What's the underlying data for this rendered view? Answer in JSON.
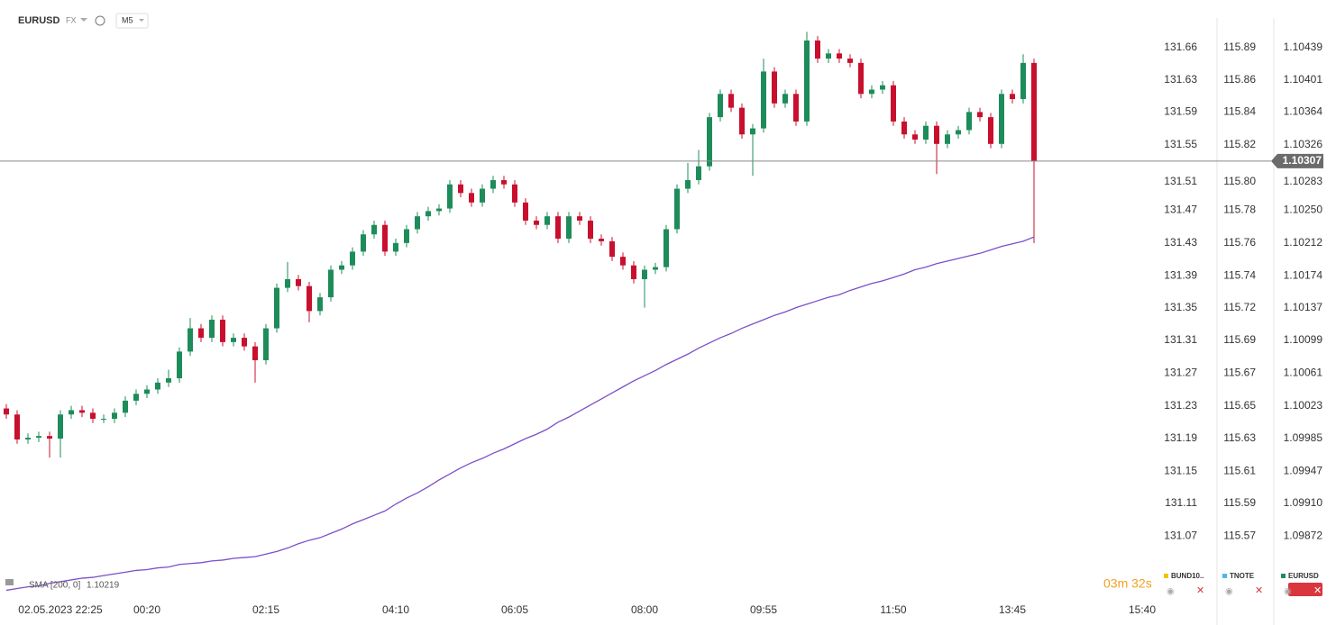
{
  "header": {
    "symbol": "EURUSD",
    "market": "FX",
    "timeframe": "M5"
  },
  "timer": "03m 32s",
  "instruments": [
    {
      "name": "BUND10..",
      "color": "#f2c200"
    },
    {
      "name": "TNOTE",
      "color": "#4db8e8"
    },
    {
      "name": "EURUSD",
      "color": "#1e8c5a"
    }
  ],
  "extra_axes": [
    {
      "labels": [
        "131.66",
        "131.63",
        "131.59",
        "131.55",
        "131.51",
        "131.47",
        "131.43",
        "131.39",
        "131.35",
        "131.31",
        "131.27",
        "131.23",
        "131.19",
        "131.15",
        "131.11",
        "131.07"
      ]
    },
    {
      "labels": [
        "115.89",
        "115.86",
        "115.84",
        "115.82",
        "115.80",
        "115.78",
        "115.76",
        "115.74",
        "115.72",
        "115.69",
        "115.67",
        "115.65",
        "115.63",
        "115.61",
        "115.59",
        "115.57"
      ]
    }
  ],
  "chart_data": {
    "type": "candlestick",
    "up_color": "#1e8c5a",
    "down_color": "#c8102e",
    "categories": [
      null,
      null,
      null,
      null,
      null,
      "02.05.2023 22:25",
      null,
      null,
      null,
      null,
      null,
      null,
      null,
      "00:20",
      null,
      null,
      null,
      null,
      null,
      null,
      null,
      null,
      null,
      null,
      "02:15",
      null,
      null,
      null,
      null,
      null,
      null,
      null,
      null,
      null,
      null,
      null,
      "04:10",
      null,
      null,
      null,
      null,
      null,
      null,
      null,
      null,
      null,
      null,
      "06:05",
      null,
      null,
      null,
      null,
      null,
      null,
      null,
      null,
      null,
      null,
      null,
      "08:00",
      null,
      null,
      null,
      null,
      null,
      null,
      null,
      null,
      null,
      null,
      "09:55",
      null,
      null,
      null,
      null,
      null,
      null,
      null,
      null,
      null,
      null,
      null,
      "11:50",
      null,
      null,
      null,
      null,
      null,
      null,
      null,
      null,
      null,
      null,
      "13:45",
      null,
      null,
      null,
      null,
      null,
      null,
      null,
      null,
      null,
      null,
      null,
      "15:40"
    ],
    "open": [
      1.1002,
      1.10013,
      1.09984,
      1.09986,
      1.09988,
      1.09985,
      1.10013,
      1.10018,
      1.10015,
      1.10008,
      1.10008,
      1.10015,
      1.10029,
      1.10037,
      1.10042,
      1.1005,
      1.10055,
      1.10086,
      1.10113,
      1.10102,
      1.10123,
      1.10097,
      1.10102,
      1.10092,
      1.10076,
      1.10113,
      1.1016,
      1.1017,
      1.10162,
      1.10133,
      1.10149,
      1.10181,
      1.10186,
      1.10202,
      1.10222,
      1.10233,
      1.10202,
      1.10212,
      1.10228,
      1.10243,
      1.10249,
      1.10252,
      1.1028,
      1.1027,
      1.10259,
      1.10275,
      1.10285,
      1.1028,
      1.10259,
      1.10238,
      1.10233,
      1.10243,
      1.10217,
      1.10243,
      1.10238,
      1.10217,
      1.10214,
      1.10196,
      1.10186,
      1.1017,
      1.10181,
      1.10184,
      1.10228,
      1.10275,
      1.10285,
      1.10301,
      1.10358,
      1.10385,
      1.10369,
      1.10338,
      1.10345,
      1.10411,
      1.10374,
      1.10385,
      1.10353,
      1.10447,
      1.10426,
      1.10432,
      1.10426,
      1.10421,
      1.10385,
      1.1039,
      1.10395,
      1.10353,
      1.10338,
      1.10332,
      1.10348,
      1.10327,
      1.10338,
      1.10343,
      1.10364,
      1.10358,
      1.10327,
      1.10385,
      1.10379,
      1.10421,
      null,
      null,
      null,
      null,
      null,
      null,
      null,
      null,
      null,
      null
    ],
    "high": [
      1.10025,
      1.10018,
      1.09991,
      1.09993,
      1.09993,
      1.10018,
      1.10023,
      1.10023,
      1.1002,
      1.10013,
      1.1002,
      1.10034,
      1.10042,
      1.10047,
      1.10055,
      1.10065,
      1.10091,
      1.10125,
      1.10118,
      1.10128,
      1.10128,
      1.10107,
      1.10107,
      1.10097,
      1.10118,
      1.10165,
      1.1019,
      1.10175,
      1.10167,
      1.10154,
      1.10186,
      1.10191,
      1.10207,
      1.10227,
      1.10238,
      1.10238,
      1.10217,
      1.10233,
      1.10248,
      1.10254,
      1.10257,
      1.10285,
      1.10285,
      1.10275,
      1.1028,
      1.1029,
      1.1029,
      1.10285,
      1.10264,
      1.10243,
      1.10248,
      1.10248,
      1.10248,
      1.10248,
      1.10243,
      1.10222,
      1.10219,
      1.10201,
      1.10191,
      1.10186,
      1.10189,
      1.10233,
      1.1028,
      1.10305,
      1.1032,
      1.10363,
      1.1039,
      1.1039,
      1.10374,
      1.1035,
      1.10426,
      1.10416,
      1.1039,
      1.1039,
      1.10457,
      1.10452,
      1.10437,
      1.10437,
      1.10431,
      1.10426,
      1.10395,
      1.104,
      1.104,
      1.10358,
      1.10343,
      1.10353,
      1.10353,
      1.10343,
      1.10348,
      1.10369,
      1.10369,
      1.10363,
      1.1039,
      1.1039,
      1.10431,
      1.10426,
      null,
      null,
      null,
      null,
      null,
      null,
      null,
      null,
      null,
      null
    ],
    "low": [
      1.10008,
      1.09979,
      1.09979,
      1.09981,
      1.09963,
      1.09963,
      1.10008,
      1.1001,
      1.10003,
      1.10003,
      1.10003,
      1.1001,
      1.10024,
      1.10032,
      1.10037,
      1.10045,
      1.1005,
      1.10081,
      1.10097,
      1.10097,
      1.10092,
      1.10092,
      1.10087,
      1.1005,
      1.10071,
      1.10108,
      1.10155,
      1.10157,
      1.1012,
      1.10128,
      1.10144,
      1.10176,
      1.10181,
      1.10197,
      1.10217,
      1.10197,
      1.10197,
      1.10207,
      1.10223,
      1.10238,
      1.10244,
      1.10247,
      1.10265,
      1.10254,
      1.10254,
      1.1027,
      1.10275,
      1.10254,
      1.10233,
      1.10228,
      1.10228,
      1.10212,
      1.10212,
      1.10233,
      1.10212,
      1.10209,
      1.10191,
      1.10181,
      1.10165,
      1.10137,
      1.10176,
      1.10179,
      1.10223,
      1.1027,
      1.1028,
      1.10296,
      1.10353,
      1.10364,
      1.10333,
      1.1029,
      1.1034,
      1.10369,
      1.10369,
      1.10348,
      1.10348,
      1.10421,
      1.10421,
      1.10421,
      1.10416,
      1.1038,
      1.1038,
      1.10385,
      1.10348,
      1.10333,
      1.10327,
      1.10327,
      1.10292,
      1.10322,
      1.10333,
      1.10338,
      1.10353,
      1.10322,
      1.10322,
      1.10374,
      1.10374,
      1.10212,
      null,
      null,
      null,
      null,
      null,
      null,
      null,
      null,
      null,
      null
    ],
    "close": [
      1.10013,
      1.09984,
      1.09986,
      1.09988,
      1.09985,
      1.10013,
      1.10018,
      1.10015,
      1.10008,
      1.10008,
      1.10015,
      1.10029,
      1.10037,
      1.10042,
      1.1005,
      1.10055,
      1.10086,
      1.10113,
      1.10102,
      1.10123,
      1.10097,
      1.10102,
      1.10092,
      1.10076,
      1.10113,
      1.1016,
      1.1017,
      1.10162,
      1.10133,
      1.10149,
      1.10181,
      1.10186,
      1.10202,
      1.10222,
      1.10233,
      1.10202,
      1.10212,
      1.10228,
      1.10243,
      1.10249,
      1.10252,
      1.1028,
      1.1027,
      1.10259,
      1.10275,
      1.10285,
      1.1028,
      1.10259,
      1.10238,
      1.10233,
      1.10243,
      1.10217,
      1.10243,
      1.10238,
      1.10217,
      1.10214,
      1.10196,
      1.10186,
      1.1017,
      1.10181,
      1.10184,
      1.10228,
      1.10275,
      1.10285,
      1.10301,
      1.10358,
      1.10385,
      1.10369,
      1.10338,
      1.10345,
      1.10411,
      1.10374,
      1.10385,
      1.10353,
      1.10447,
      1.10426,
      1.10432,
      1.10426,
      1.10421,
      1.10385,
      1.1039,
      1.10395,
      1.10353,
      1.10338,
      1.10332,
      1.10348,
      1.10327,
      1.10338,
      1.10343,
      1.10364,
      1.10358,
      1.10327,
      1.10385,
      1.10379,
      1.10421,
      1.10307,
      null,
      null,
      null,
      null,
      null,
      null,
      null,
      null,
      null,
      null
    ],
    "sma": {
      "name": "SMA [200, 0]",
      "color": "#7b4fc9",
      "values": [
        1.09809,
        1.09811,
        1.09813,
        1.09814,
        1.09817,
        1.09819,
        1.09821,
        1.09823,
        1.09824,
        1.09826,
        1.09828,
        1.0983,
        1.09832,
        1.09833,
        1.09835,
        1.09836,
        1.09839,
        1.0984,
        1.09841,
        1.09843,
        1.09844,
        1.09846,
        1.09847,
        1.09848,
        1.09851,
        1.09854,
        1.09858,
        1.09863,
        1.09867,
        1.0987,
        1.09875,
        1.0988,
        1.09886,
        1.09891,
        1.09896,
        1.09901,
        1.09909,
        1.09916,
        1.09922,
        1.09929,
        1.09937,
        1.09944,
        1.09951,
        1.09957,
        1.09962,
        1.09968,
        1.09973,
        1.09979,
        1.09985,
        1.0999,
        1.09996,
        1.10004,
        1.1001,
        1.10017,
        1.10024,
        1.10031,
        1.10038,
        1.10045,
        1.10052,
        1.10058,
        1.10064,
        1.10071,
        1.10077,
        1.10083,
        1.1009,
        1.10096,
        1.10102,
        1.10107,
        1.10113,
        1.10118,
        1.10123,
        1.10128,
        1.10132,
        1.10137,
        1.10141,
        1.10145,
        1.10149,
        1.10152,
        1.10157,
        1.10161,
        1.10165,
        1.10168,
        1.10172,
        1.10176,
        1.10181,
        1.10184,
        1.10188,
        1.10191,
        1.10194,
        1.10197,
        1.102,
        1.10204,
        1.10208,
        1.10211,
        1.10214,
        1.10219,
        null,
        null,
        null,
        null,
        null,
        null,
        null,
        null,
        null,
        null
      ]
    },
    "ylim": [
      1.09799,
      1.10494
    ],
    "yticks": [
      1.10439,
      1.10401,
      1.10364,
      1.10326,
      1.10283,
      {
        "value": 1.1025,
        "label": "1.10250"
      },
      1.10212,
      1.10174,
      1.10137,
      1.10099,
      1.10061,
      1.10023,
      1.09985,
      1.09947,
      {
        "value": 1.0991,
        "label": "1.09910"
      },
      1.09872
    ],
    "grid": false
  }
}
